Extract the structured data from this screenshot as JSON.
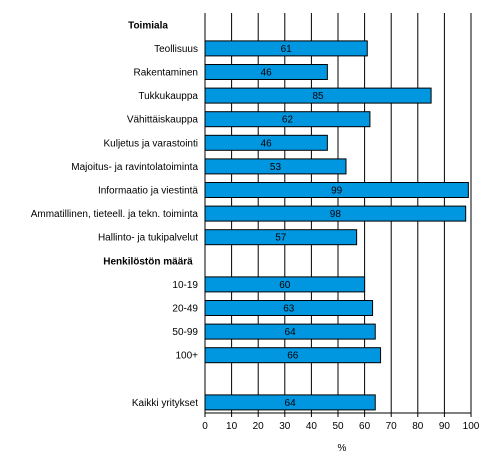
{
  "chart_data": {
    "type": "bar",
    "orientation": "horizontal",
    "xlabel": "%",
    "xlim": [
      0,
      100
    ],
    "xticks": [
      0,
      10,
      20,
      30,
      40,
      50,
      60,
      70,
      80,
      90,
      100
    ],
    "grid": "vertical",
    "colors": {
      "bar": "#0096e0",
      "bar_edge": "#000000",
      "grid": "#000000"
    },
    "groups": [
      {
        "heading": "Toimiala",
        "categories": [
          "Teollisuus",
          "Rakentaminen",
          "Tukkukauppa",
          "Vähittäiskauppa",
          "Kuljetus ja varastointi",
          "Majoitus- ja ravintolatoiminta",
          "Informaatio ja viestintä",
          "Ammatillinen, tieteell. ja tekn. toiminta",
          "Hallinto- ja tukipalvelut"
        ],
        "values": [
          61,
          46,
          85,
          62,
          46,
          53,
          99,
          98,
          57
        ]
      },
      {
        "heading": "Henkilöstön määrä",
        "categories": [
          "10-19",
          "20-49",
          "50-99",
          "100+"
        ],
        "values": [
          60,
          63,
          64,
          66
        ]
      },
      {
        "heading": "",
        "categories": [
          "Kaikki yritykset"
        ],
        "values": [
          64
        ]
      }
    ]
  }
}
